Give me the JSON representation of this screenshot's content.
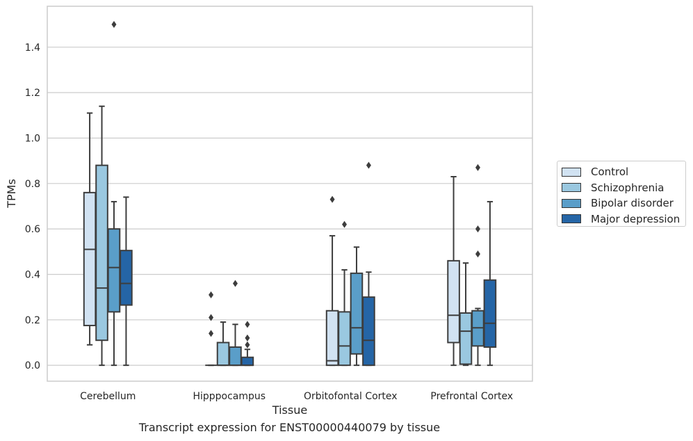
{
  "chart_data": {
    "type": "box",
    "xlabel": "Tissue",
    "ylabel": "TPMs",
    "ylim": [
      -0.07,
      1.58
    ],
    "yticks": [
      0.0,
      0.2,
      0.4,
      0.6,
      0.8,
      1.0,
      1.2,
      1.4
    ],
    "ytick_labels": [
      "0.0",
      "0.2",
      "0.4",
      "0.6",
      "0.8",
      "1.0",
      "1.2",
      "1.4"
    ],
    "grid": "horizontal",
    "legend_position": "right",
    "categories": [
      "Cerebellum",
      "Hipppocampus",
      "Orbitofontal Cortex",
      "Prefrontal Cortex"
    ],
    "series": [
      {
        "name": "Control",
        "color": "#d1e2f2",
        "boxes": [
          {
            "whislo": 0.09,
            "q1": 0.175,
            "med": 0.51,
            "q3": 0.76,
            "whishi": 1.11,
            "fliers": []
          },
          {
            "whislo": 0.0,
            "q1": 0.0,
            "med": 0.0,
            "q3": 0.0,
            "whishi": 0.0,
            "fliers": [
              0.31,
              0.21,
              0.14
            ]
          },
          {
            "whislo": 0.0,
            "q1": 0.0,
            "med": 0.02,
            "q3": 0.24,
            "whishi": 0.57,
            "fliers": [
              0.73
            ]
          },
          {
            "whislo": 0.0,
            "q1": 0.1,
            "med": 0.22,
            "q3": 0.46,
            "whishi": 0.83,
            "fliers": []
          }
        ]
      },
      {
        "name": "Schizophrenia",
        "color": "#9ac8e0",
        "boxes": [
          {
            "whislo": 0.0,
            "q1": 0.11,
            "med": 0.34,
            "q3": 0.88,
            "whishi": 1.14,
            "fliers": []
          },
          {
            "whislo": 0.0,
            "q1": 0.0,
            "med": 0.0,
            "q3": 0.1,
            "whishi": 0.19,
            "fliers": []
          },
          {
            "whislo": 0.0,
            "q1": 0.0,
            "med": 0.085,
            "q3": 0.235,
            "whishi": 0.42,
            "fliers": [
              0.62
            ]
          },
          {
            "whislo": 0.0,
            "q1": 0.005,
            "med": 0.15,
            "q3": 0.23,
            "whishi": 0.45,
            "fliers": []
          }
        ]
      },
      {
        "name": "Bipolar disorder",
        "color": "#5a9ec9",
        "boxes": [
          {
            "whislo": 0.0,
            "q1": 0.235,
            "med": 0.43,
            "q3": 0.6,
            "whishi": 0.72,
            "fliers": [
              1.5
            ]
          },
          {
            "whislo": 0.0,
            "q1": 0.0,
            "med": 0.0,
            "q3": 0.08,
            "whishi": 0.18,
            "fliers": [
              0.36
            ]
          },
          {
            "whislo": 0.0,
            "q1": 0.05,
            "med": 0.165,
            "q3": 0.405,
            "whishi": 0.52,
            "fliers": []
          },
          {
            "whislo": 0.0,
            "q1": 0.085,
            "med": 0.165,
            "q3": 0.24,
            "whishi": 0.25,
            "fliers": [
              0.87,
              0.6,
              0.49
            ]
          }
        ]
      },
      {
        "name": "Major depression",
        "color": "#2565a6",
        "boxes": [
          {
            "whislo": 0.0,
            "q1": 0.265,
            "med": 0.36,
            "q3": 0.505,
            "whishi": 0.74,
            "fliers": []
          },
          {
            "whislo": 0.0,
            "q1": 0.0,
            "med": 0.0,
            "q3": 0.035,
            "whishi": 0.07,
            "fliers": [
              0.18,
              0.12,
              0.09
            ]
          },
          {
            "whislo": 0.0,
            "q1": 0.0,
            "med": 0.11,
            "q3": 0.3,
            "whishi": 0.41,
            "fliers": [
              0.88
            ]
          },
          {
            "whislo": 0.0,
            "q1": 0.08,
            "med": 0.185,
            "q3": 0.375,
            "whishi": 0.72,
            "fliers": []
          }
        ]
      }
    ]
  },
  "caption": "Transcript expression for ENST00000440079 by tissue"
}
